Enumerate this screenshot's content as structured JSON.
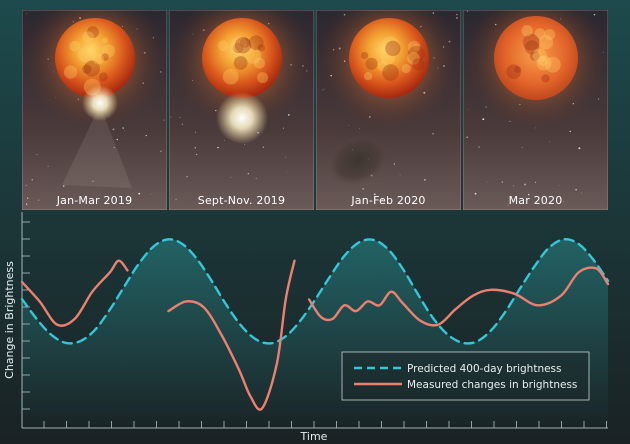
{
  "panels": [
    {
      "label": "Jan-Mar 2019",
      "variant": "bright-spot"
    },
    {
      "label": "Sept-Nov. 2019",
      "variant": "big-bright-spot"
    },
    {
      "label": "Jan-Feb 2020",
      "variant": "dust-cloud"
    },
    {
      "label": "Mar 2020",
      "variant": "hazy-star"
    }
  ],
  "chart_data": {
    "type": "line",
    "title": "",
    "xlabel": "Time",
    "ylabel": "Change in Brightness",
    "xlim": [
      0,
      100
    ],
    "ylim": [
      0,
      100
    ],
    "grid": false,
    "legend_position": "bottom-right",
    "series": [
      {
        "name": "Predicted 400-day brightness",
        "style": "dashed",
        "color": "#35c6d8",
        "x": [
          0,
          2.5,
          5,
          7.5,
          10,
          12.5,
          15,
          17.5,
          20,
          22.5,
          25,
          27.5,
          30,
          32.5,
          35,
          37.5,
          40,
          42.5,
          45,
          47.5,
          50,
          52.5,
          55,
          57.5,
          60,
          62.5,
          65,
          67.5,
          70,
          72.5,
          75,
          77.5,
          80,
          82.5,
          85,
          87.5,
          90,
          92.5,
          95,
          97.5,
          100
        ],
        "y": [
          58.2,
          48.0,
          39.8,
          35.6,
          36.6,
          42.5,
          52.8,
          64.9,
          76.7,
          85.4,
          89.0,
          86.3,
          78.3,
          66.9,
          54.6,
          44.1,
          37.3,
          35.4,
          39.0,
          47.0,
          57.8,
          69.6,
          80.4,
          87.4,
          88.7,
          83.8,
          73.7,
          61.0,
          49.0,
          40.3,
          35.8,
          36.2,
          41.9,
          51.7,
          63.7,
          75.3,
          84.9,
          89.0,
          86.6,
          78.5,
          67.6
        ]
      },
      {
        "name": "Measured changes in brightness",
        "style": "solid",
        "color": "#ec8070",
        "segments": [
          {
            "x": [
              0,
              3,
              6,
              9,
              12,
              15,
              16.5,
              18
            ],
            "y": [
              67,
              57,
              45,
              48,
              62,
              72,
              78,
              73
            ]
          },
          {
            "x": [
              25,
              28,
              31,
              34,
              37,
              39,
              41,
              43.5,
              45,
              46.5
            ],
            "y": [
              52,
              57,
              54,
              40,
              22,
              8,
              2,
              25,
              58,
              78
            ]
          },
          {
            "x": [
              49,
              51,
              53,
              55,
              57,
              59,
              61,
              63,
              65,
              68,
              71,
              74,
              77,
              80,
              84,
              88,
              92,
              95,
              98,
              100
            ],
            "y": [
              58,
              49,
              48,
              55,
              52,
              57,
              55,
              62,
              56,
              47,
              45,
              53,
              60,
              63,
              61,
              55,
              60,
              72,
              74,
              66
            ]
          }
        ]
      }
    ]
  }
}
